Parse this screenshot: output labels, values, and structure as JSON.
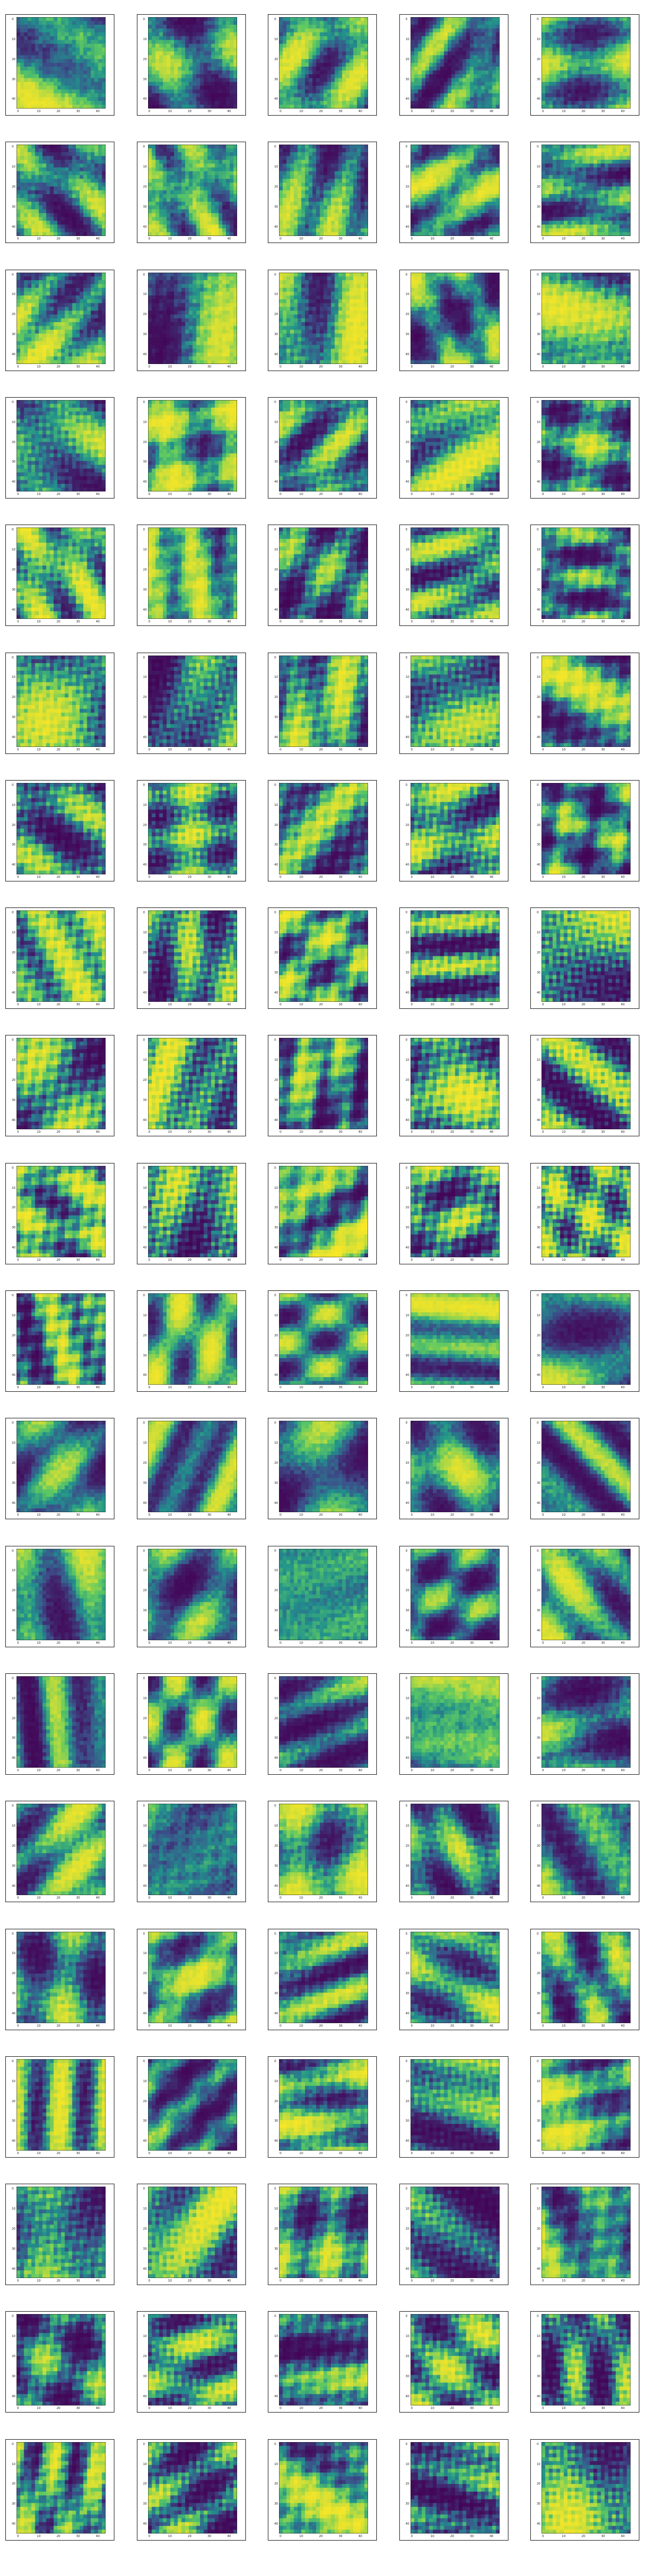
{
  "figure": {
    "rows": 20,
    "cols": 5,
    "colormap": "viridis",
    "colors": [
      "#440154",
      "#3b528b",
      "#21918c",
      "#5ec962",
      "#fde725"
    ],
    "ticks": [
      "0",
      "10",
      "20",
      "30",
      "40"
    ]
  }
}
